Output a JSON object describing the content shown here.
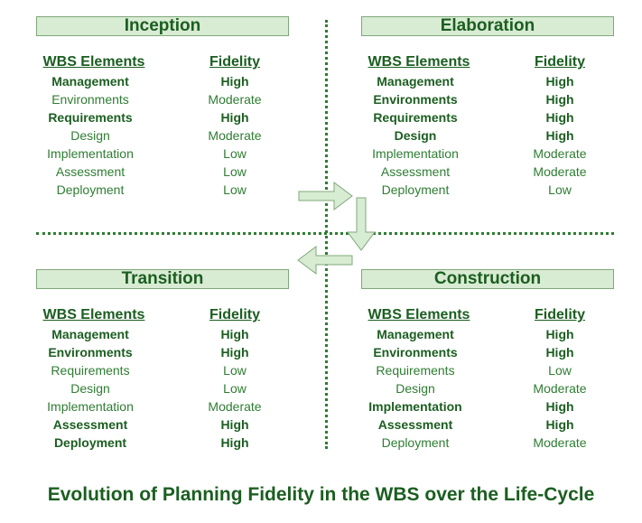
{
  "column_headers": {
    "element": "WBS Elements",
    "fidelity": "Fidelity"
  },
  "phases": [
    {
      "name": "Inception",
      "rows": [
        {
          "element": "Management",
          "fidelity": "High",
          "bold": true
        },
        {
          "element": "Environments",
          "fidelity": "Moderate",
          "bold": false
        },
        {
          "element": "Requirements",
          "fidelity": "High",
          "bold": true
        },
        {
          "element": "Design",
          "fidelity": "Moderate",
          "bold": false
        },
        {
          "element": "Implementation",
          "fidelity": "Low",
          "bold": false
        },
        {
          "element": "Assessment",
          "fidelity": "Low",
          "bold": false
        },
        {
          "element": "Deployment",
          "fidelity": "Low",
          "bold": false
        }
      ]
    },
    {
      "name": "Elaboration",
      "rows": [
        {
          "element": "Management",
          "fidelity": "High",
          "bold": true
        },
        {
          "element": "Environments",
          "fidelity": "High",
          "bold": true
        },
        {
          "element": "Requirements",
          "fidelity": "High",
          "bold": true
        },
        {
          "element": "Design",
          "fidelity": "High",
          "bold": true
        },
        {
          "element": "Implementation",
          "fidelity": "Moderate",
          "bold": false
        },
        {
          "element": "Assessment",
          "fidelity": "Moderate",
          "bold": false
        },
        {
          "element": "Deployment",
          "fidelity": "Low",
          "bold": false
        }
      ]
    },
    {
      "name": "Transition",
      "rows": [
        {
          "element": "Management",
          "fidelity": "High",
          "bold": true
        },
        {
          "element": "Environments",
          "fidelity": "High",
          "bold": true
        },
        {
          "element": "Requirements",
          "fidelity": "Low",
          "bold": false
        },
        {
          "element": "Design",
          "fidelity": "Low",
          "bold": false
        },
        {
          "element": "Implementation",
          "fidelity": "Moderate",
          "bold": false
        },
        {
          "element": "Assessment",
          "fidelity": "High",
          "bold": true
        },
        {
          "element": "Deployment",
          "fidelity": "High",
          "bold": true
        }
      ]
    },
    {
      "name": "Construction",
      "rows": [
        {
          "element": "Management",
          "fidelity": "High",
          "bold": true
        },
        {
          "element": "Environments",
          "fidelity": "High",
          "bold": true
        },
        {
          "element": "Requirements",
          "fidelity": "Low",
          "bold": false
        },
        {
          "element": "Design",
          "fidelity": "Moderate",
          "bold": false
        },
        {
          "element": "Implementation",
          "fidelity": "High",
          "bold": true
        },
        {
          "element": "Assessment",
          "fidelity": "High",
          "bold": true
        },
        {
          "element": "Deployment",
          "fidelity": "Moderate",
          "bold": false
        }
      ]
    }
  ],
  "caption": "Evolution of Planning Fidelity in the WBS over the Life-Cycle",
  "colors": {
    "text": "#2e7d32",
    "header_fill": "#d8ebd3",
    "arrow_fill": "#d8ebd3",
    "arrow_stroke": "#7fa87a"
  }
}
